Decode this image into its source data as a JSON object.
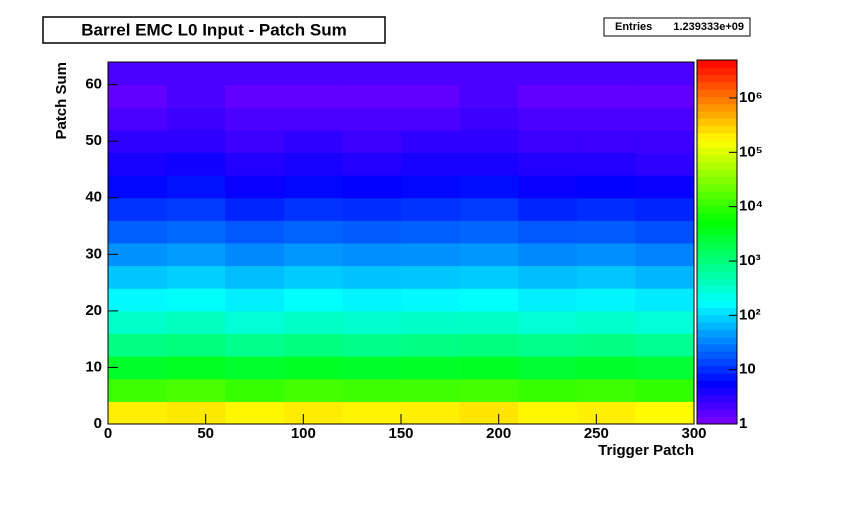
{
  "chart_data": {
    "type": "heatmap",
    "title": "Barrel EMC L0 Input - Patch Sum",
    "stats_label": "Entries",
    "stats_value": "1.239333e+09",
    "x_label": "Trigger Patch",
    "y_label": "Patch Sum",
    "xlim": [
      0,
      300
    ],
    "xticks": [
      0,
      50,
      100,
      150,
      200,
      250,
      300
    ],
    "ylim": [
      0,
      64
    ],
    "yticks": [
      0,
      10,
      20,
      30,
      40,
      50,
      60
    ],
    "zlim": [
      1,
      5000000
    ],
    "zscale": "log",
    "zticks": [
      1,
      10,
      {
        "value": 100,
        "label": "10²"
      },
      {
        "value": 1000,
        "label": "10³"
      },
      {
        "value": 10000,
        "label": "10⁴"
      },
      {
        "value": 100000,
        "label": "10⁵"
      },
      {
        "value": 1000000,
        "label": "10⁶"
      }
    ],
    "xbins": [
      0,
      30,
      60,
      90,
      120,
      150,
      180,
      210,
      240,
      270,
      300
    ],
    "ybins": [
      0,
      4,
      8,
      12,
      16,
      20,
      24,
      28,
      32,
      36,
      40,
      44,
      48,
      52,
      56,
      60,
      64
    ],
    "z": [
      [
        200000,
        220000,
        180000,
        210000,
        190000,
        200000,
        230000,
        180000,
        200000,
        170000
      ],
      [
        12000,
        14000,
        11000,
        13000,
        12000,
        12500,
        13000,
        11000,
        12000,
        10000
      ],
      [
        3000,
        3500,
        2800,
        3200,
        3000,
        3100,
        3300,
        2700,
        3000,
        2600
      ],
      [
        900,
        1000,
        800,
        950,
        850,
        900,
        950,
        800,
        900,
        750
      ],
      [
        350,
        400,
        300,
        380,
        330,
        360,
        380,
        300,
        340,
        290
      ],
      [
        160,
        180,
        140,
        170,
        150,
        160,
        170,
        140,
        150,
        130
      ],
      [
        80,
        90,
        70,
        85,
        75,
        80,
        85,
        70,
        78,
        65
      ],
      [
        40,
        45,
        35,
        42,
        38,
        40,
        43,
        35,
        38,
        32
      ],
      [
        20,
        23,
        18,
        21,
        19,
        20,
        22,
        18,
        19,
        16
      ],
      [
        11,
        12,
        9,
        11,
        10,
        11,
        12,
        9,
        10,
        9
      ],
      [
        6,
        7,
        5,
        6,
        5.5,
        6,
        6.5,
        5,
        5.5,
        5
      ],
      [
        4,
        4.5,
        3.5,
        4,
        3.5,
        4,
        4,
        3.5,
        3.5,
        3
      ],
      [
        3,
        3,
        2.5,
        3,
        2.5,
        3,
        3,
        2.5,
        2.5,
        2.5
      ],
      [
        2,
        2.5,
        2,
        2,
        2,
        2,
        2.5,
        2,
        2,
        2
      ],
      [
        1.5,
        2,
        1.5,
        1.5,
        1.5,
        1.5,
        2,
        1.5,
        1.5,
        1.5
      ],
      [
        2,
        2,
        2,
        2,
        2,
        2,
        2,
        2,
        2,
        2
      ]
    ]
  }
}
